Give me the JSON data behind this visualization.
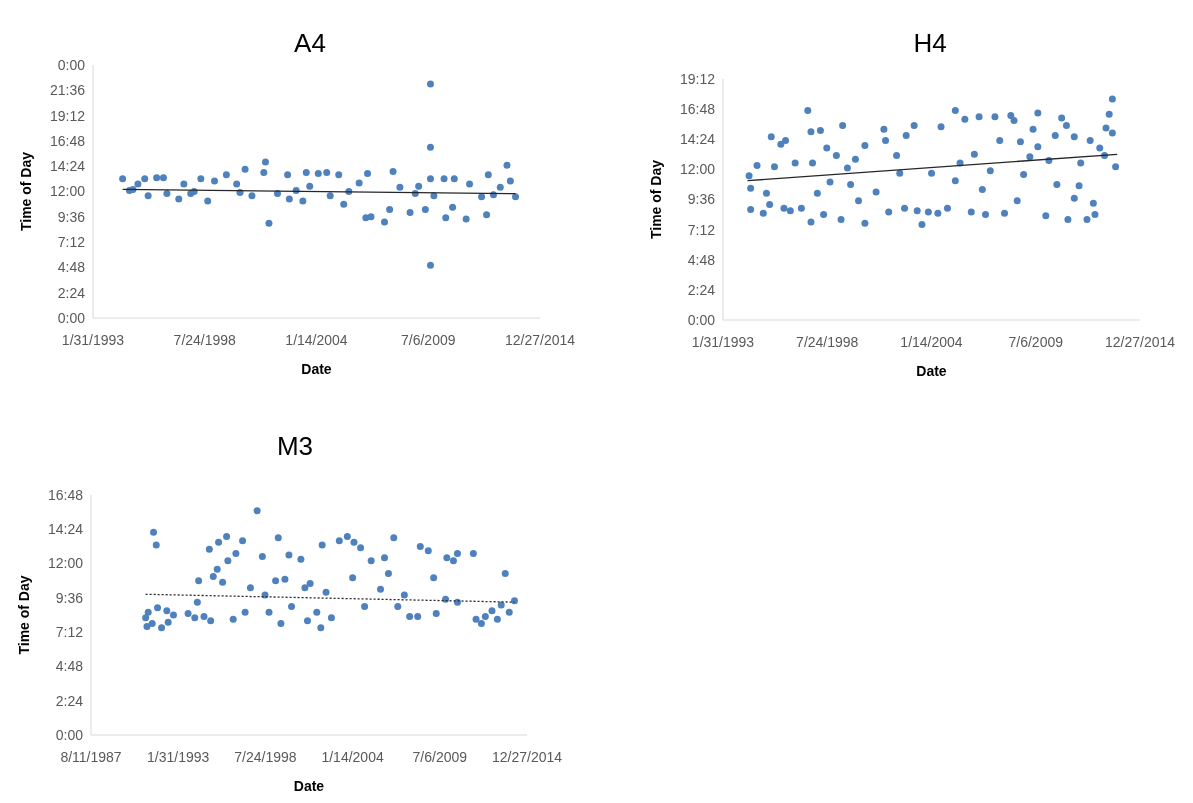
{
  "chart_data": [
    {
      "type": "scatter",
      "title": "A4",
      "xlabel": "Date",
      "ylabel": "Time of Day",
      "marker": "circle",
      "xlim": [
        "1993-01-31",
        "2014-12-27"
      ],
      "xticks": [
        {
          "value": "1993-01-31",
          "label": "1/31/1993"
        },
        {
          "value": "1998-07-24",
          "label": "7/24/1998"
        },
        {
          "value": "2004-01-14",
          "label": "1/14/2004"
        },
        {
          "value": "2009-07-06",
          "label": "7/6/2009"
        },
        {
          "value": "2014-12-27",
          "label": "12/27/2014"
        }
      ],
      "ylim": [
        0,
        24
      ],
      "yticks": [
        {
          "value": 0,
          "label": "0:00"
        },
        {
          "value": 2.4,
          "label": "2:24"
        },
        {
          "value": 4.8,
          "label": "4:48"
        },
        {
          "value": 7.2,
          "label": "7:12"
        },
        {
          "value": 9.6,
          "label": "9:36"
        },
        {
          "value": 12,
          "label": "12:00"
        },
        {
          "value": 14.4,
          "label": "14:24"
        },
        {
          "value": 16.8,
          "label": "16:48"
        },
        {
          "value": 19.2,
          "label": "19:12"
        },
        {
          "value": 21.6,
          "label": "21:36"
        },
        {
          "value": 24,
          "label": "0:00"
        }
      ],
      "series": [
        {
          "color": "#4f81bd",
          "x": [
            "1994-07",
            "1994-11",
            "1995-01",
            "1995-04",
            "1995-08",
            "1995-10",
            "1996-03",
            "1996-07",
            "1996-09",
            "1997-04",
            "1997-07",
            "1997-11",
            "1998-01",
            "1998-05",
            "1998-09",
            "1999-01",
            "1999-08",
            "2000-02",
            "2000-04",
            "2000-07",
            "2000-11",
            "2001-07",
            "2001-06",
            "2001-09",
            "2002-02",
            "2002-08",
            "2002-09",
            "2003-01",
            "2003-05",
            "2003-07",
            "2003-09",
            "2004-02",
            "2004-07",
            "2004-09",
            "2005-02",
            "2005-05",
            "2005-08",
            "2006-02",
            "2006-06",
            "2006-07",
            "2006-09",
            "2007-05",
            "2007-08",
            "2007-10",
            "2008-02",
            "2008-08",
            "2008-11",
            "2009-01",
            "2009-08",
            "2009-08",
            "2009-08",
            "2009-08",
            "2009-05",
            "2009-10",
            "2010-04",
            "2010-05",
            "2010-09",
            "2010-10",
            "2011-05",
            "2011-07",
            "2012-02",
            "2012-05",
            "2012-06",
            "2012-09",
            "2013-01",
            "2013-05",
            "2013-07",
            "2013-10"
          ],
          "values": [
            13.2,
            12.1,
            12.2,
            12.7,
            13.2,
            11.6,
            13.3,
            13.3,
            11.8,
            11.3,
            12.7,
            11.8,
            12.0,
            13.2,
            11.1,
            13.0,
            13.6,
            12.7,
            11.9,
            14.1,
            11.6,
            14.8,
            13.8,
            9.0,
            11.8,
            13.6,
            11.3,
            12.1,
            11.1,
            13.8,
            12.5,
            13.7,
            13.8,
            11.6,
            13.6,
            10.8,
            12.0,
            12.8,
            9.5,
            13.7,
            9.6,
            9.1,
            10.3,
            13.9,
            12.4,
            10.0,
            11.8,
            12.5,
            22.2,
            16.2,
            5.0,
            13.2,
            10.3,
            11.6,
            13.2,
            9.5,
            10.5,
            13.2,
            9.4,
            12.7,
            11.5,
            9.8,
            13.6,
            11.7,
            12.4,
            14.5,
            13.0,
            11.5
          ]
        },
        {
          "type": "line",
          "color": "#262626",
          "marker": "none",
          "x": [
            "1994-07",
            "2013-10"
          ],
          "values": [
            12.2,
            11.8
          ]
        }
      ]
    },
    {
      "type": "scatter",
      "title": "H4",
      "xlabel": "Date",
      "ylabel": "Time of Day",
      "marker": "circle",
      "xlim": [
        "1993-01-31",
        "2014-12-27"
      ],
      "xticks": [
        {
          "value": "1993-01-31",
          "label": "1/31/1993"
        },
        {
          "value": "1998-07-24",
          "label": "7/24/1998"
        },
        {
          "value": "2004-01-14",
          "label": "1/14/2004"
        },
        {
          "value": "2009-07-06",
          "label": "7/6/2009"
        },
        {
          "value": "2014-12-27",
          "label": "12/27/2014"
        }
      ],
      "ylim": [
        0,
        19.2
      ],
      "yticks": [
        {
          "value": 0,
          "label": "0:00"
        },
        {
          "value": 2.4,
          "label": "2:24"
        },
        {
          "value": 4.8,
          "label": "4:48"
        },
        {
          "value": 7.2,
          "label": "7:12"
        },
        {
          "value": 9.6,
          "label": "9:36"
        },
        {
          "value": 12,
          "label": "12:00"
        },
        {
          "value": 14.4,
          "label": "14:24"
        },
        {
          "value": 16.8,
          "label": "16:48"
        },
        {
          "value": 19.2,
          "label": "19:12"
        }
      ],
      "series": [
        {
          "color": "#4f81bd",
          "x": [
            "1994-07",
            "1994-07",
            "1994-06",
            "1994-11",
            "1995-03",
            "1995-05",
            "1995-08",
            "1995-07",
            "1995-10",
            "1996-02",
            "1996-05",
            "1996-04",
            "1996-08",
            "1996-11",
            "1997-03",
            "1997-07",
            "1997-09",
            "1997-09",
            "1997-10",
            "1998-01",
            "1998-03",
            "1998-05",
            "1998-07",
            "1998-09",
            "1999-01",
            "1999-04",
            "1999-05",
            "1999-08",
            "1999-10",
            "2000-01",
            "2000-03",
            "2000-07",
            "2000-07",
            "2001-02",
            "2001-07",
            "2001-08",
            "2001-10",
            "2002-03",
            "2002-05",
            "2002-08",
            "2002-09",
            "2003-02",
            "2003-04",
            "2003-07",
            "2003-11",
            "2004-01",
            "2004-05",
            "2004-07",
            "2004-11",
            "2005-04",
            "2005-04",
            "2005-07",
            "2005-10",
            "2006-02",
            "2006-04",
            "2006-07",
            "2006-09",
            "2006-11",
            "2007-02",
            "2007-05",
            "2007-08",
            "2007-11",
            "2008-03",
            "2008-05",
            "2008-07",
            "2008-09",
            "2008-11",
            "2009-03",
            "2009-05",
            "2009-08",
            "2009-08",
            "2010-01",
            "2010-03",
            "2010-07",
            "2010-08",
            "2010-11",
            "2011-02",
            "2011-03",
            "2011-07",
            "2011-07",
            "2011-10",
            "2011-11",
            "2012-03",
            "2012-05",
            "2012-07",
            "2012-08",
            "2012-11",
            "2013-02",
            "2013-03",
            "2013-05",
            "2013-07",
            "2013-07",
            "2013-09"
          ],
          "values": [
            10.5,
            8.8,
            11.5,
            12.3,
            8.5,
            10.1,
            14.6,
            9.2,
            12.2,
            14.0,
            14.3,
            8.9,
            8.7,
            12.5,
            8.9,
            16.7,
            7.8,
            15.0,
            12.5,
            10.1,
            15.1,
            8.4,
            13.7,
            11.0,
            13.1,
            8.0,
            15.5,
            12.1,
            10.8,
            12.8,
            9.5,
            7.7,
            13.9,
            10.2,
            15.2,
            14.3,
            8.6,
            13.1,
            11.7,
            8.9,
            14.7,
            15.5,
            8.7,
            7.6,
            8.6,
            11.7,
            8.5,
            15.4,
            8.9,
            16.7,
            11.1,
            12.5,
            16.0,
            8.6,
            13.2,
            16.2,
            10.4,
            8.4,
            11.9,
            16.2,
            14.3,
            8.5,
            16.3,
            15.9,
            9.5,
            14.2,
            11.6,
            13.0,
            15.2,
            16.5,
            13.8,
            8.3,
            12.7,
            14.7,
            10.8,
            16.1,
            15.5,
            8.0,
            14.6,
            9.7,
            10.7,
            12.5,
            8.0,
            14.3,
            9.3,
            8.4,
            13.7,
            13.1,
            15.3,
            16.4,
            17.6,
            14.9,
            12.2
          ]
        },
        {
          "type": "line",
          "color": "#262626",
          "marker": "none",
          "x": [
            "1994-05",
            "2013-10"
          ],
          "values": [
            11.1,
            13.2
          ]
        }
      ]
    },
    {
      "type": "scatter",
      "title": "M3",
      "xlabel": "Date",
      "ylabel": "Time of Day",
      "marker": "circle",
      "xlim": [
        "1987-08-11",
        "2014-12-27"
      ],
      "xticks": [
        {
          "value": "1987-08-11",
          "label": "8/11/1987"
        },
        {
          "value": "1993-01-31",
          "label": "1/31/1993"
        },
        {
          "value": "1998-07-24",
          "label": "7/24/1998"
        },
        {
          "value": "2004-01-14",
          "label": "1/14/2004"
        },
        {
          "value": "2009-07-06",
          "label": "7/6/2009"
        },
        {
          "value": "2014-12-27",
          "label": "12/27/2014"
        }
      ],
      "ylim": [
        0,
        16.8
      ],
      "yticks": [
        {
          "value": 0,
          "label": "0:00"
        },
        {
          "value": 2.4,
          "label": "2:24"
        },
        {
          "value": 4.8,
          "label": "4:48"
        },
        {
          "value": 7.2,
          "label": "7:12"
        },
        {
          "value": 9.6,
          "label": "9:36"
        },
        {
          "value": 12,
          "label": "12:00"
        },
        {
          "value": 14.4,
          "label": "14:24"
        },
        {
          "value": 16.8,
          "label": "16:48"
        }
      ],
      "series": [
        {
          "color": "#4f81bd",
          "x": [
            "1991-01",
            "1991-02",
            "1991-03",
            "1991-07",
            "1991-06",
            "1991-09",
            "1991-10",
            "1992-01",
            "1992-05",
            "1992-06",
            "1992-10",
            "1993-09",
            "1994-02",
            "1994-04",
            "1994-05",
            "1994-09",
            "1995-01",
            "1995-02",
            "1995-04",
            "1995-07",
            "1995-08",
            "1995-11",
            "1996-02",
            "1996-03",
            "1996-07",
            "1996-09",
            "1997-02",
            "1997-04",
            "1997-08",
            "1998-01",
            "1998-05",
            "1998-07",
            "1998-10",
            "1999-03",
            "1999-05",
            "1999-07",
            "1999-10",
            "2000-01",
            "2000-03",
            "2000-10",
            "2001-01",
            "2001-03",
            "2001-05",
            "2001-10",
            "2002-01",
            "2002-02",
            "2002-05",
            "2002-09",
            "2003-03",
            "2003-09",
            "2004-01",
            "2004-02",
            "2004-07",
            "2004-10",
            "2005-03",
            "2005-10",
            "2006-01",
            "2006-04",
            "2006-08",
            "2006-11",
            "2007-04",
            "2007-08",
            "2008-02",
            "2008-04",
            "2008-10",
            "2009-02",
            "2009-04",
            "2009-11",
            "2009-12",
            "2010-05",
            "2010-08",
            "2010-08",
            "2011-08",
            "2011-10",
            "2012-02",
            "2012-05",
            "2012-10",
            "2013-02",
            "2013-05",
            "2013-08",
            "2013-11",
            "2014-03"
          ],
          "values": [
            8.2,
            7.6,
            8.6,
            14.2,
            7.8,
            13.3,
            8.9,
            7.5,
            8.7,
            7.9,
            8.4,
            8.5,
            8.2,
            9.3,
            10.8,
            8.3,
            13.0,
            8.0,
            11.1,
            11.6,
            13.5,
            10.7,
            13.9,
            12.2,
            8.1,
            12.7,
            13.6,
            8.6,
            10.3,
            15.7,
            12.5,
            9.8,
            8.6,
            10.8,
            13.8,
            7.8,
            10.9,
            12.6,
            9.0,
            12.3,
            10.3,
            8.0,
            10.6,
            8.6,
            7.5,
            13.3,
            10.0,
            8.2,
            13.6,
            13.9,
            11.0,
            13.5,
            13.1,
            9.0,
            12.2,
            10.2,
            12.4,
            11.3,
            13.8,
            9.0,
            9.8,
            8.3,
            8.3,
            13.2,
            12.9,
            11.0,
            8.5,
            9.5,
            12.4,
            12.2,
            12.7,
            9.3,
            12.7,
            8.1,
            7.8,
            8.3,
            8.7,
            8.1,
            9.1,
            11.3,
            8.6,
            9.4
          ]
        },
        {
          "type": "line",
          "color": "#262626",
          "marker": "none",
          "line_style": "dotted",
          "x": [
            "1991-01",
            "2014-03"
          ],
          "values": [
            9.85,
            9.3
          ]
        }
      ]
    }
  ]
}
